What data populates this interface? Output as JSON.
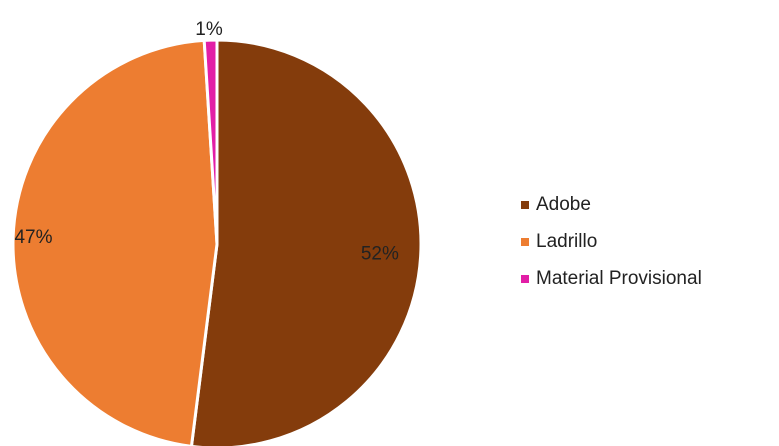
{
  "chart_data": {
    "type": "pie",
    "title": "",
    "slices": [
      {
        "label": "Adobe",
        "value": 52,
        "display": "52%",
        "color": "#843C0C"
      },
      {
        "label": "Ladrillo",
        "value": 47,
        "display": "47%",
        "color": "#ED7D31"
      },
      {
        "label": "Material Provisional",
        "value": 1,
        "display": "1%",
        "color": "#E21EA6"
      }
    ],
    "legend_position": "right",
    "start": "top",
    "direction": "clockwise"
  }
}
